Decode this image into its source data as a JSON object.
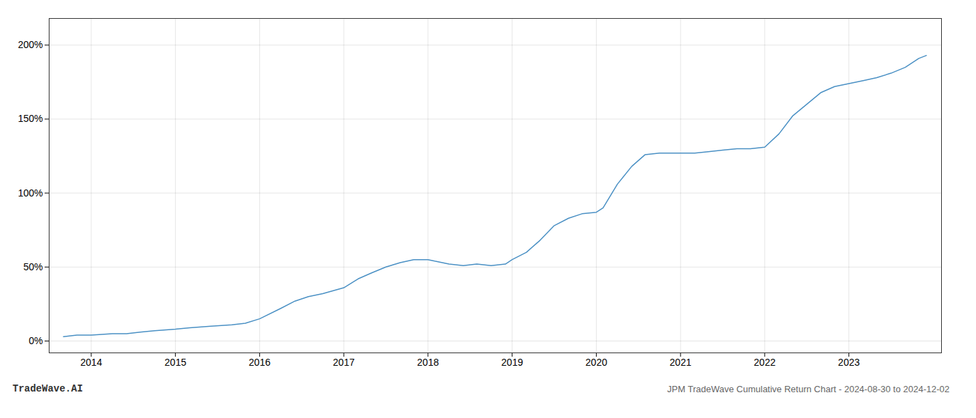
{
  "chart_data": {
    "type": "line",
    "title": "JPM TradeWave Cumulative Return Chart - 2024-08-30 to 2024-12-02",
    "annotations": [
      "TradeWave.AI"
    ],
    "x": [
      2013.67,
      2013.83,
      2014.0,
      2014.25,
      2014.42,
      2014.58,
      2014.75,
      2015.0,
      2015.17,
      2015.42,
      2015.67,
      2015.83,
      2016.0,
      2016.25,
      2016.42,
      2016.58,
      2016.75,
      2017.0,
      2017.17,
      2017.33,
      2017.5,
      2017.67,
      2017.83,
      2018.0,
      2018.08,
      2018.17,
      2018.25,
      2018.42,
      2018.58,
      2018.75,
      2018.92,
      2019.0,
      2019.17,
      2019.33,
      2019.5,
      2019.67,
      2019.83,
      2020.0,
      2020.08,
      2020.25,
      2020.42,
      2020.58,
      2020.75,
      2020.83,
      2020.92,
      2021.0,
      2021.17,
      2021.33,
      2021.5,
      2021.67,
      2021.83,
      2022.0,
      2022.17,
      2022.33,
      2022.5,
      2022.67,
      2022.83,
      2023.0,
      2023.17,
      2023.33,
      2023.5,
      2023.67,
      2023.83,
      2023.92
    ],
    "values": [
      3,
      4,
      4,
      5,
      5,
      6,
      7,
      8,
      9,
      10,
      11,
      12,
      15,
      22,
      27,
      30,
      32,
      36,
      42,
      46,
      50,
      53,
      55,
      55,
      54,
      53,
      52,
      51,
      52,
      51,
      52,
      55,
      60,
      68,
      78,
      83,
      86,
      87,
      90,
      106,
      118,
      126,
      127,
      127,
      127,
      127,
      127,
      128,
      129,
      130,
      130,
      131,
      140,
      152,
      160,
      168,
      172,
      174,
      176,
      178,
      181,
      185,
      191,
      193
    ],
    "color": "#4a90c4",
    "xlim": [
      2013.5,
      2024.1
    ],
    "ylim": [
      -8,
      218
    ],
    "xticks": [
      2014,
      2015,
      2016,
      2017,
      2018,
      2019,
      2020,
      2021,
      2022,
      2023
    ],
    "yticks": [
      {
        "value": 0,
        "label": "0%"
      },
      {
        "value": 50,
        "label": "50%"
      },
      {
        "value": 100,
        "label": "100%"
      },
      {
        "value": 150,
        "label": "150%"
      },
      {
        "value": 200,
        "label": "200%"
      }
    ],
    "grid": true
  }
}
